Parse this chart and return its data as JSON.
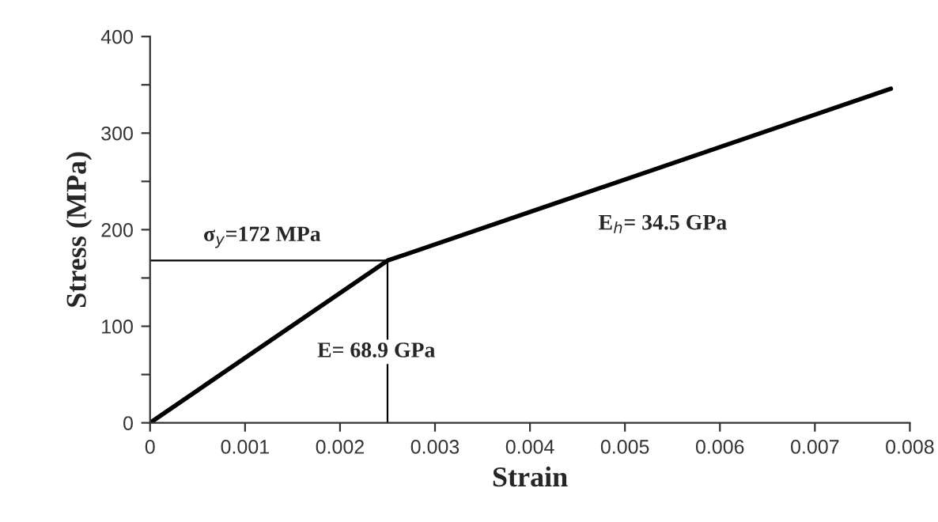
{
  "chart_data": {
    "type": "line",
    "xlabel": "Strain",
    "ylabel": "Stress (MPa)",
    "x": [
      0,
      0.0025,
      0.0078
    ],
    "series": [
      {
        "color": "#000000",
        "values": [
          0,
          168,
          346
        ]
      }
    ],
    "xlim": [
      0,
      0.008
    ],
    "xticks": [
      0,
      0.001,
      0.002,
      0.003,
      0.004,
      0.005,
      0.006,
      0.007,
      0.008
    ],
    "ylim": [
      0,
      400
    ],
    "yticks": [
      0,
      {
        "value": 50,
        "label": null
      },
      100,
      {
        "value": 150,
        "label": null
      },
      200,
      {
        "value": 250,
        "label": null
      },
      300,
      {
        "value": 350,
        "label": null
      },
      400
    ],
    "ref_lines": [
      {
        "axis": "y",
        "value": 168,
        "color": "#000000"
      },
      {
        "axis": "x",
        "value": 0.0025,
        "color": "#000000"
      }
    ],
    "annotations": [
      "σ$_{y}$=172 MPa",
      "E$_{h}$= 34.5 GPa",
      "E= 68.9 GPa"
    ],
    "grid": false,
    "legend": false,
    "marker": "none",
    "line_style": "solid"
  }
}
